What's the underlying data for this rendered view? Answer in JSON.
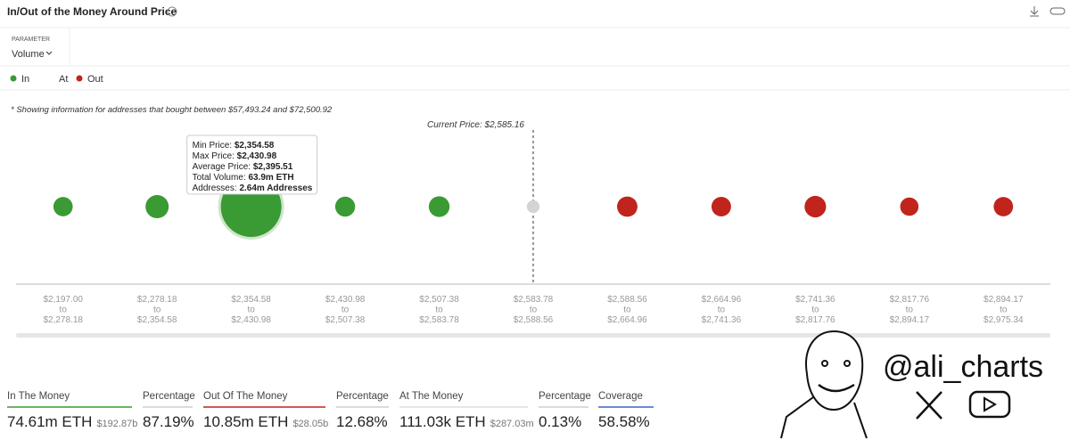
{
  "header": {
    "title": "In/Out of the Money Around Price",
    "parameter_label": "PARAMETER",
    "parameter_value": "Volume"
  },
  "note": "* Showing information for addresses that bought between $57,493.24 and $72,500.92",
  "chart_data": {
    "type": "bubble",
    "current_price_label": "Current Price: $2,585.16",
    "categories": [
      [
        "$2,197.00",
        "to",
        "$2,278.18"
      ],
      [
        "$2,278.18",
        "to",
        "$2,354.58"
      ],
      [
        "$2,354.58",
        "to",
        "$2,430.98"
      ],
      [
        "$2,430.98",
        "to",
        "$2,507.38"
      ],
      [
        "$2,507.38",
        "to",
        "$2,583.78"
      ],
      [
        "$2,583.78",
        "to",
        "$2,588.56"
      ],
      [
        "$2,588.56",
        "to",
        "$2,664.96"
      ],
      [
        "$2,664.96",
        "to",
        "$2,741.36"
      ],
      [
        "$2,741.36",
        "to",
        "$2,817.76"
      ],
      [
        "$2,817.76",
        "to",
        "$2,894.17"
      ],
      [
        "$2,894.17",
        "to",
        "$2,975.34"
      ]
    ],
    "series": [
      {
        "name": "In",
        "color": "#3a9a33",
        "values": [
          1.9,
          4.0,
          63.9,
          2.2,
          2.6,
          null,
          null,
          null,
          null,
          null,
          null
        ]
      },
      {
        "name": "At",
        "color": "#d4d4d4",
        "values": [
          null,
          null,
          null,
          null,
          null,
          0.111,
          null,
          null,
          null,
          null,
          null
        ]
      },
      {
        "name": "Out",
        "color": "#c0241c",
        "values": [
          null,
          null,
          null,
          null,
          null,
          null,
          2.4,
          2.0,
          3.0,
          1.5,
          1.95
        ]
      }
    ],
    "tooltip": [
      [
        "Min Price: ",
        "$2,354.58"
      ],
      [
        "Max Price: ",
        "$2,430.98"
      ],
      [
        "Average Price: ",
        "$2,395.51"
      ],
      [
        "Total Volume: ",
        "63.9m ETH"
      ],
      [
        "Addresses: ",
        "2.64m Addresses"
      ]
    ]
  },
  "summary": [
    {
      "label": "In The Money",
      "value": "74.61m ETH",
      "sub": "$192.87b",
      "color": "#3a9a33"
    },
    {
      "label": "Percentage",
      "value": "87.19%",
      "color": "#cfcfcf"
    },
    {
      "label": "Out Of The Money",
      "value": "10.85m ETH",
      "sub": "$28.05b",
      "color": "#c0241c"
    },
    {
      "label": "Percentage",
      "value": "12.68%",
      "color": "#cfcfcf"
    },
    {
      "label": "At The Money",
      "value": "111.03k ETH",
      "sub": "$287.03m",
      "color": "#dddddd"
    },
    {
      "label": "Percentage",
      "value": "0.13%",
      "color": "#cfcfcf"
    },
    {
      "label": "Coverage",
      "value": "58.58%",
      "color": "#3d63c9"
    }
  ],
  "watermark": "@ali_charts"
}
